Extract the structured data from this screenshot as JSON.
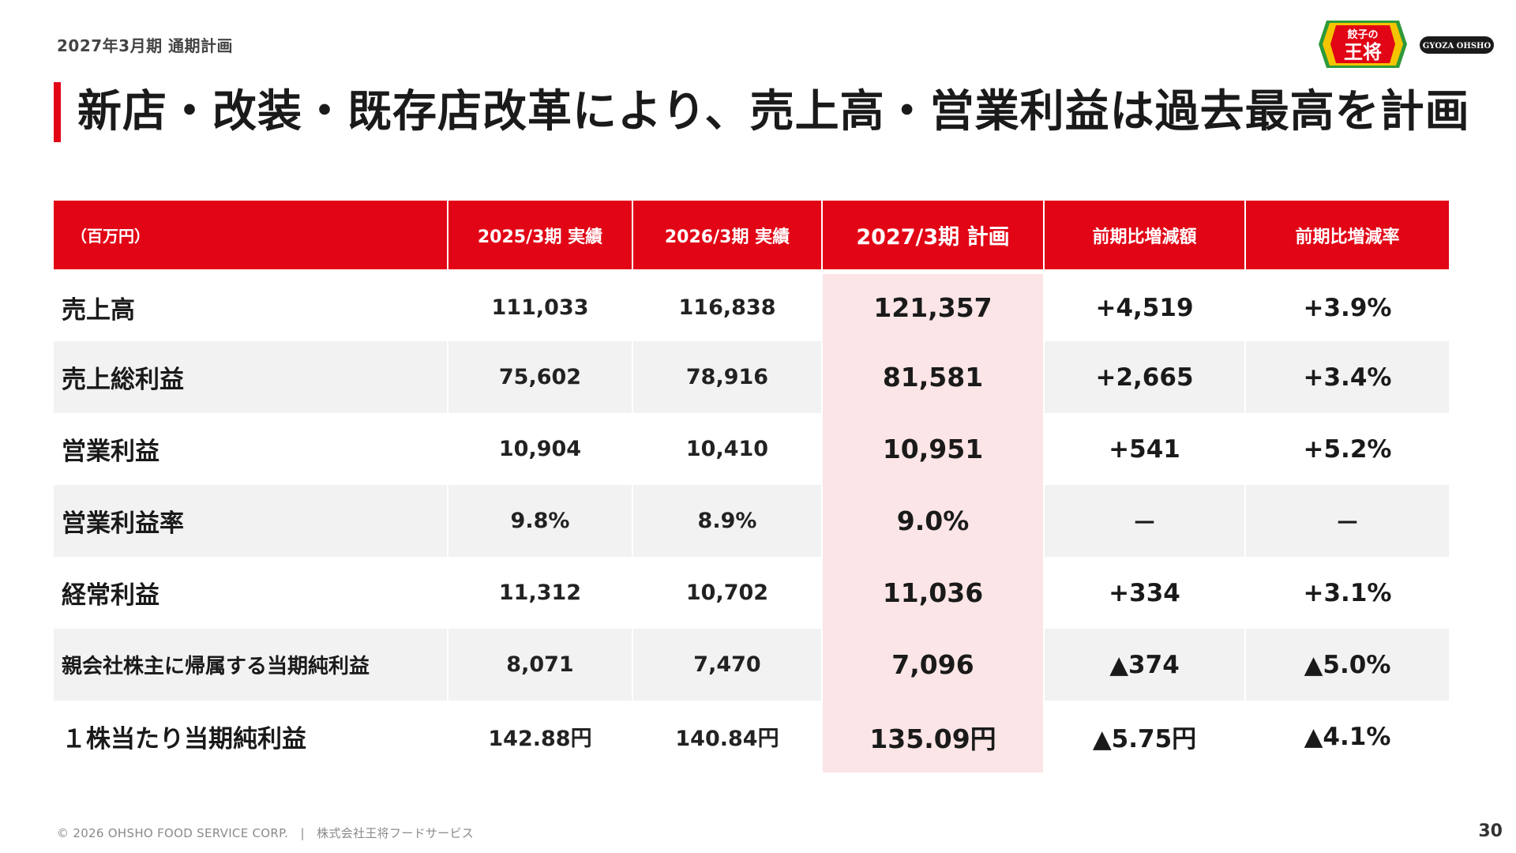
{
  "header": {
    "period_label": "2027年3月期 通期計画",
    "title": "新店・改装・既存店改革により、売上高・営業利益は過去最高を計画"
  },
  "logo": {
    "badge_text_top": "餃子の",
    "badge_text_main": "王将",
    "right_text": "GYOZA OHSHO",
    "colors": {
      "red": "#e10516",
      "yellow": "#f5c400",
      "green": "#2e9a3a",
      "dark": "#1a1a1a"
    }
  },
  "table": {
    "headers": [
      "（百万円）",
      "2025/3期 実績",
      "2026/3期 実績",
      "2027/3期 計画",
      "前期比増減額",
      "前期比増減率"
    ],
    "rows": [
      {
        "label": "売上高",
        "fy2025": "111,033",
        "fy2026": "116,838",
        "plan": "121,357",
        "diff": "+4,519",
        "rate": "+3.9%"
      },
      {
        "label": "売上総利益",
        "fy2025": "75,602",
        "fy2026": "78,916",
        "plan": "81,581",
        "diff": "+2,665",
        "rate": "+3.4%"
      },
      {
        "label": "営業利益",
        "fy2025": "10,904",
        "fy2026": "10,410",
        "plan": "10,951",
        "diff": "+541",
        "rate": "+5.2%"
      },
      {
        "label": "営業利益率",
        "fy2025": "9.8%",
        "fy2026": "8.9%",
        "plan": "9.0%",
        "diff": "－",
        "rate": "－"
      },
      {
        "label": "経常利益",
        "fy2025": "11,312",
        "fy2026": "10,702",
        "plan": "11,036",
        "diff": "+334",
        "rate": "+3.1%"
      },
      {
        "label": "親会社株主に帰属する当期純利益",
        "fy2025": "8,071",
        "fy2026": "7,470",
        "plan": "7,096",
        "diff": "▲374",
        "rate": "▲5.0%"
      },
      {
        "label": "１株当たり当期純利益",
        "fy2025": "142.88円",
        "fy2026": "140.84円",
        "plan": "135.09円",
        "diff": "▲5.75円",
        "rate": "▲4.1%"
      }
    ]
  },
  "footer": {
    "copyright": "© 2026 OHSHO FOOD SERVICE CORP.　|　株式会社王将フードサービス",
    "page_number": "30"
  },
  "colors": {
    "accent": "#e10516",
    "plan_highlight": "#fbe5e6",
    "stripe": "#f2f2f2"
  }
}
